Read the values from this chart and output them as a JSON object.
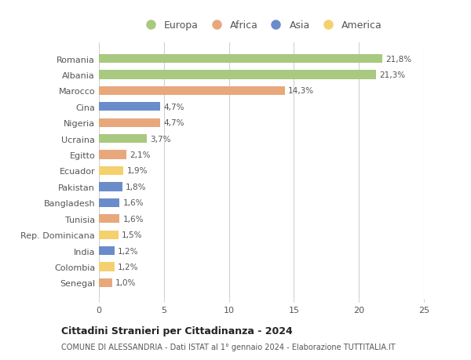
{
  "countries": [
    "Romania",
    "Albania",
    "Marocco",
    "Cina",
    "Nigeria",
    "Ucraina",
    "Egitto",
    "Ecuador",
    "Pakistan",
    "Bangladesh",
    "Tunisia",
    "Rep. Dominicana",
    "India",
    "Colombia",
    "Senegal"
  ],
  "values": [
    21.8,
    21.3,
    14.3,
    4.7,
    4.7,
    3.7,
    2.1,
    1.9,
    1.8,
    1.6,
    1.6,
    1.5,
    1.2,
    1.2,
    1.0
  ],
  "labels": [
    "21,8%",
    "21,3%",
    "14,3%",
    "4,7%",
    "4,7%",
    "3,7%",
    "2,1%",
    "1,9%",
    "1,8%",
    "1,6%",
    "1,6%",
    "1,5%",
    "1,2%",
    "1,2%",
    "1,0%"
  ],
  "continents": [
    "Europa",
    "Europa",
    "Africa",
    "Asia",
    "Africa",
    "Europa",
    "Africa",
    "America",
    "Asia",
    "Asia",
    "Africa",
    "America",
    "Asia",
    "America",
    "Africa"
  ],
  "colors": {
    "Europa": "#a8c97f",
    "Africa": "#e8a87c",
    "Asia": "#6b8cca",
    "America": "#f5d06e"
  },
  "legend_order": [
    "Europa",
    "Africa",
    "Asia",
    "America"
  ],
  "xlim": [
    0,
    25
  ],
  "xticks": [
    0,
    5,
    10,
    15,
    20,
    25
  ],
  "title": "Cittadini Stranieri per Cittadinanza - 2024",
  "subtitle": "COMUNE DI ALESSANDRIA - Dati ISTAT al 1° gennaio 2024 - Elaborazione TUTTITALIA.IT",
  "bar_height": 0.55,
  "background_color": "#ffffff",
  "grid_color": "#d0d0d0"
}
